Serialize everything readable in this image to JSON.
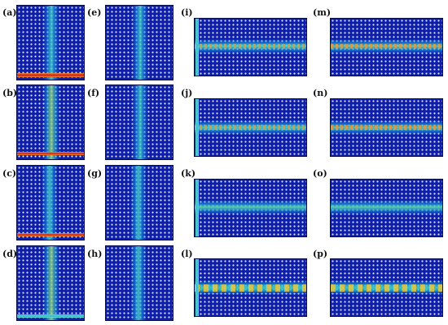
{
  "figure": {
    "panels": [
      {
        "id": "a",
        "label": "(a)"
      },
      {
        "id": "b",
        "label": "(b)"
      },
      {
        "id": "c",
        "label": "(c)"
      },
      {
        "id": "d",
        "label": "(d)"
      },
      {
        "id": "e",
        "label": "(e)"
      },
      {
        "id": "f",
        "label": "(f)"
      },
      {
        "id": "g",
        "label": "(g)"
      },
      {
        "id": "h",
        "label": "(h)"
      },
      {
        "id": "i",
        "label": "(i)"
      },
      {
        "id": "j",
        "label": "(j)"
      },
      {
        "id": "k",
        "label": "(k)"
      },
      {
        "id": "l",
        "label": "(l)"
      },
      {
        "id": "m",
        "label": "(m)"
      },
      {
        "id": "n",
        "label": "(n)"
      },
      {
        "id": "o",
        "label": "(o)"
      },
      {
        "id": "p",
        "label": "(p)"
      }
    ]
  }
}
